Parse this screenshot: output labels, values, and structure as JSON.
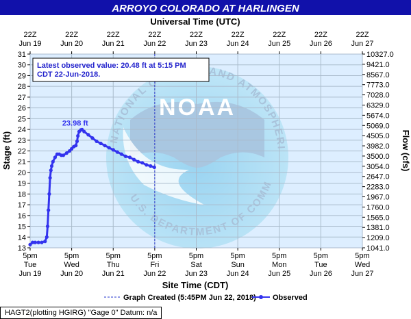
{
  "chart_data": {
    "type": "line",
    "title": "ARROYO COLORADO AT HARLINGEN",
    "top_axis_title": "Universal Time (UTC)",
    "top_ticks": [
      {
        "line1": "22Z",
        "line2": "Jun 19"
      },
      {
        "line1": "22Z",
        "line2": "Jun 20"
      },
      {
        "line1": "22Z",
        "line2": "Jun 21"
      },
      {
        "line1": "22Z",
        "line2": "Jun 22"
      },
      {
        "line1": "22Z",
        "line2": "Jun 23"
      },
      {
        "line1": "22Z",
        "line2": "Jun 24"
      },
      {
        "line1": "22Z",
        "line2": "Jun 25"
      },
      {
        "line1": "22Z",
        "line2": "Jun 26"
      },
      {
        "line1": "22Z",
        "line2": "Jun 27"
      }
    ],
    "bottom_ticks": [
      {
        "line1": "5pm",
        "line2": "Tue",
        "line3": "Jun 19"
      },
      {
        "line1": "5pm",
        "line2": "Wed",
        "line3": "Jun 20"
      },
      {
        "line1": "5pm",
        "line2": "Thu",
        "line3": "Jun 21"
      },
      {
        "line1": "5pm",
        "line2": "Fri",
        "line3": "Jun 22"
      },
      {
        "line1": "5pm",
        "line2": "Sat",
        "line3": "Jun 23"
      },
      {
        "line1": "5pm",
        "line2": "Sun",
        "line3": "Jun 24"
      },
      {
        "line1": "5pm",
        "line2": "Mon",
        "line3": "Jun 25"
      },
      {
        "line1": "5pm",
        "line2": "Tue",
        "line3": "Jun 26"
      },
      {
        "line1": "5pm",
        "line2": "Wed",
        "line3": "Jun 27"
      }
    ],
    "xlabel": "Site Time (CDT)",
    "ylabel": "Stage (ft)",
    "y2label": "Flow (cfs)",
    "x_range_days": [
      0,
      8
    ],
    "ylim": [
      13,
      31
    ],
    "y_ticks": [
      13,
      14,
      15,
      16,
      17,
      18,
      19,
      20,
      21,
      22,
      23,
      24,
      25,
      26,
      27,
      28,
      29,
      30,
      31
    ],
    "y2_ticks": [
      "1041.0",
      "1209.0",
      "1381.0",
      "1565.0",
      "1760.0",
      "1967.0",
      "2283.0",
      "2647.0",
      "3054.0",
      "3500.0",
      "3982.0",
      "4505.0",
      "5069.0",
      "5674.0",
      "6329.0",
      "7028.0",
      "7773.0",
      "8567.0",
      "9421.0",
      "10327.0"
    ],
    "grid": true,
    "legend": {
      "created_label": "Graph Created (5:45PM Jun 22, 2018)",
      "observed_label": "Observed"
    },
    "annotation_box": {
      "line1": "Latest observed value: 20.48 ft at 5:15 PM",
      "line2": "CDT 22-Jun-2018."
    },
    "peak_label": "23.98 ft",
    "peak": {
      "x": 1.25,
      "y": 23.98
    },
    "created_x": 3.0,
    "series": [
      {
        "name": "Observed",
        "color": "#3333ee",
        "x": [
          0.0,
          0.06,
          0.12,
          0.2,
          0.28,
          0.36,
          0.4,
          0.42,
          0.44,
          0.46,
          0.48,
          0.5,
          0.52,
          0.55,
          0.6,
          0.65,
          0.7,
          0.75,
          0.8,
          0.88,
          0.95,
          1.0,
          1.05,
          1.1,
          1.13,
          1.15,
          1.18,
          1.22,
          1.25,
          1.3,
          1.4,
          1.5,
          1.6,
          1.7,
          1.8,
          1.9,
          2.0,
          2.1,
          2.2,
          2.3,
          2.4,
          2.5,
          2.6,
          2.7,
          2.8,
          2.9,
          2.99
        ],
        "y": [
          13.3,
          13.5,
          13.5,
          13.5,
          13.5,
          13.6,
          14.0,
          15.0,
          16.5,
          18.0,
          19.5,
          20.2,
          20.6,
          21.0,
          21.4,
          21.7,
          21.7,
          21.6,
          21.6,
          21.8,
          22.0,
          22.2,
          22.4,
          22.5,
          22.9,
          23.4,
          23.8,
          23.95,
          23.98,
          23.8,
          23.5,
          23.2,
          22.9,
          22.7,
          22.5,
          22.3,
          22.1,
          21.9,
          21.7,
          21.5,
          21.4,
          21.2,
          21.0,
          20.9,
          20.7,
          20.6,
          20.48
        ]
      }
    ]
  },
  "footer": {
    "text": "HAGT2(plotting HGIRG) \"Gage 0\" Datum: n/a"
  },
  "colors": {
    "title_bg": "#1111aa",
    "plot_bg": "#ddeeff",
    "grid": "#aabbcc",
    "observed": "#3333ee",
    "annotation_text": "#2222cc",
    "created_line": "#2233cc"
  }
}
